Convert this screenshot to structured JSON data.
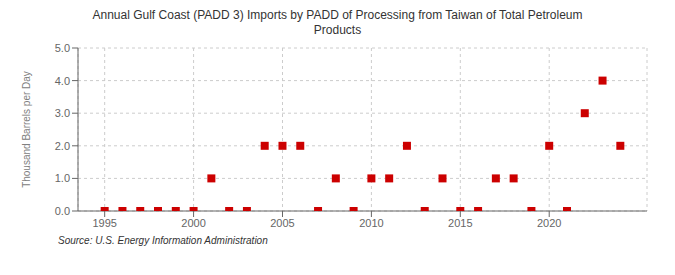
{
  "chart_data": {
    "type": "scatter",
    "title": "Annual Gulf Coast (PADD 3) Imports by PADD of Processing from Taiwan of Total Petroleum\nProducts",
    "ylabel": "Thousand Barrels per Day",
    "source": "Source: U.S. Energy Information Administration",
    "x": [
      1995,
      1996,
      1997,
      1998,
      1999,
      2000,
      2001,
      2002,
      2003,
      2004,
      2005,
      2006,
      2007,
      2008,
      2009,
      2010,
      2011,
      2012,
      2013,
      2014,
      2015,
      2016,
      2017,
      2018,
      2019,
      2020,
      2021,
      2022,
      2023,
      2024
    ],
    "values": [
      0,
      0,
      0,
      0,
      0,
      0,
      1,
      0,
      0,
      2,
      2,
      2,
      0,
      1,
      0,
      1,
      1,
      2,
      0,
      1,
      0,
      0,
      1,
      1,
      0,
      2,
      0,
      3,
      4,
      2
    ],
    "color": "#cc0000",
    "marker": "square",
    "xlim": [
      1993.5,
      2025.5
    ],
    "ylim": [
      0.0,
      5.0
    ],
    "xticks": [
      1995,
      2000,
      2005,
      2010,
      2015,
      2020
    ],
    "yticks": [
      {
        "value": 0,
        "label": "0.0"
      },
      {
        "value": 1,
        "label": "1.0"
      },
      {
        "value": 2,
        "label": "2.0"
      },
      {
        "value": 3,
        "label": "3.0"
      },
      {
        "value": 4,
        "label": "4.0"
      },
      {
        "value": 5,
        "label": "5.0"
      }
    ],
    "grid": true
  }
}
